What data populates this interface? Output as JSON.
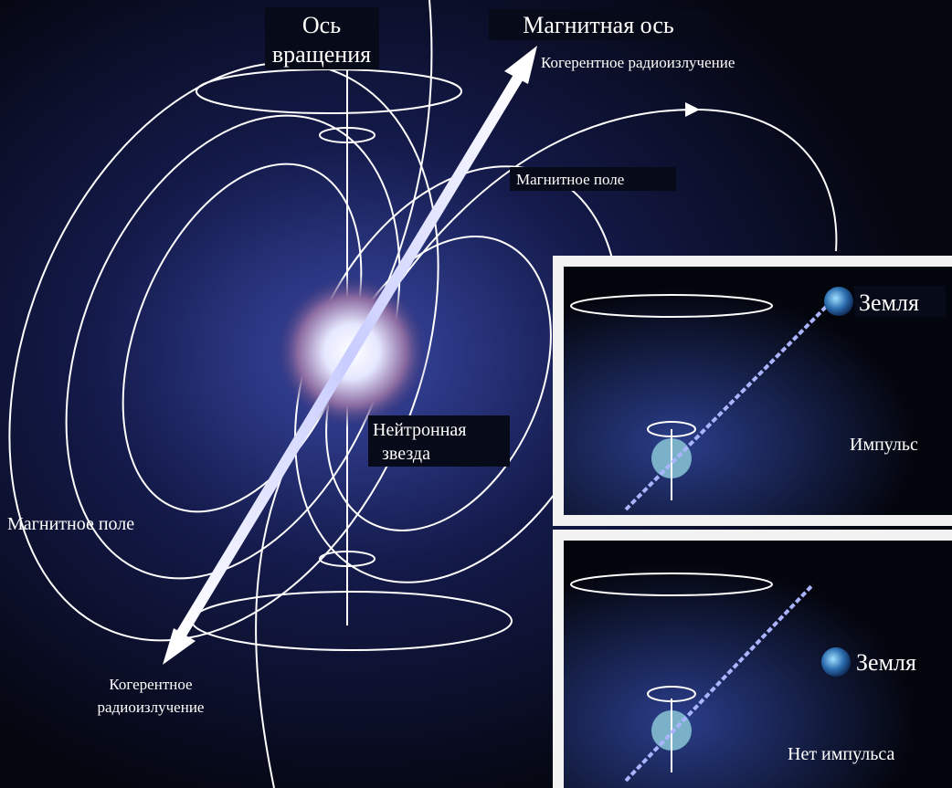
{
  "labels": {
    "rotation_axis": [
      "Ось",
      "вращения"
    ],
    "magnetic_axis": "Магнитная ось",
    "radio_top": "Когерентное радиоизлучение",
    "field_right": "Магнитное поле",
    "neutron_star": [
      "Нейтронная",
      "звезда"
    ],
    "field_left": "Магнитное поле",
    "radio_bottom": [
      "Когерентное",
      "радиоизлучение"
    ]
  },
  "insets": [
    {
      "earth": "Земля",
      "status": "Импульс"
    },
    {
      "earth": "Земля",
      "status": "Нет импульса"
    }
  ]
}
